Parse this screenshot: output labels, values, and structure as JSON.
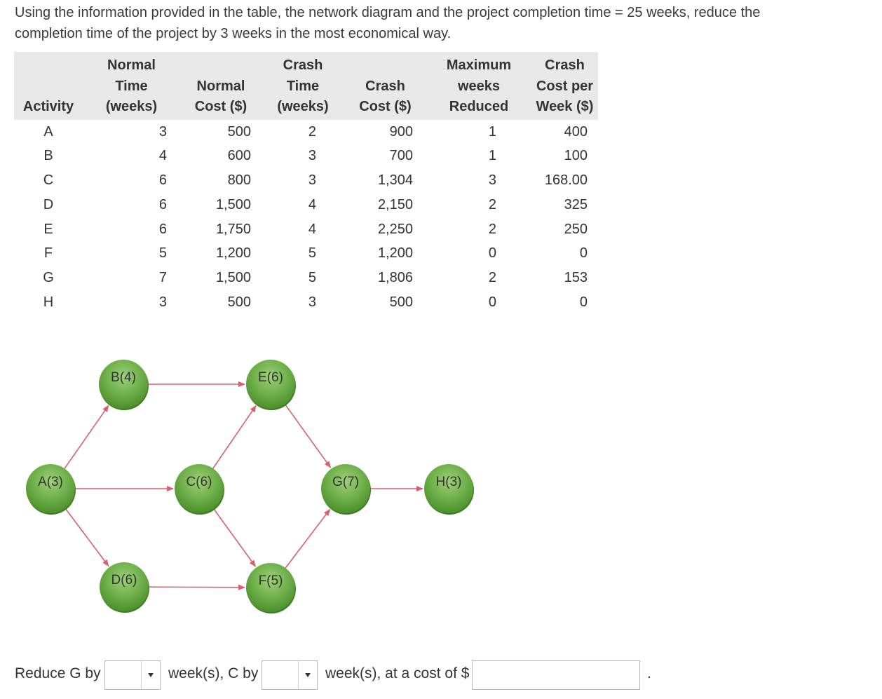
{
  "question": {
    "line1": "Using the information provided in the table, the network diagram and the project completion time = 25 weeks, reduce the",
    "line2": "completion time of the project by 3 weeks in the most economical way."
  },
  "table": {
    "headers": [
      [
        "",
        "",
        "Activity"
      ],
      [
        "Normal",
        "Time",
        "(weeks)"
      ],
      [
        "",
        "Normal",
        "Cost ($)"
      ],
      [
        "Crash",
        "Time",
        "(weeks)"
      ],
      [
        "",
        "Crash",
        "Cost ($)"
      ],
      [
        "Maximum",
        "weeks",
        "Reduced"
      ],
      [
        "Crash",
        "Cost per",
        "Week ($)"
      ]
    ],
    "rows": [
      [
        "A",
        "3",
        "500",
        "2",
        "900",
        "1",
        "400"
      ],
      [
        "B",
        "4",
        "600",
        "3",
        "700",
        "1",
        "100"
      ],
      [
        "C",
        "6",
        "800",
        "3",
        "1,304",
        "3",
        "168.00"
      ],
      [
        "D",
        "6",
        "1,500",
        "4",
        "2,150",
        "2",
        "325"
      ],
      [
        "E",
        "6",
        "1,750",
        "4",
        "2,250",
        "2",
        "250"
      ],
      [
        "F",
        "5",
        "1,200",
        "5",
        "1,200",
        "0",
        "0"
      ],
      [
        "G",
        "7",
        "1,500",
        "5",
        "1,806",
        "2",
        "153"
      ],
      [
        "H",
        "3",
        "500",
        "3",
        "500",
        "0",
        "0"
      ]
    ]
  },
  "network": {
    "nodes": {
      "A": "A(3)",
      "B": "B(4)",
      "C": "C(6)",
      "D": "D(6)",
      "E": "E(6)",
      "F": "F(5)",
      "G": "G(7)",
      "H": "H(3)"
    },
    "node_color": "#5ea23a",
    "edge_color": "#d9606a"
  },
  "answer": {
    "reduce_g_label": "Reduce G by",
    "reduce_g_value": "",
    "weeks_c_label": "week(s), C by",
    "reduce_c_value": "",
    "cost_label": "week(s), at a cost of $",
    "cost_value": "",
    "end_period": "."
  }
}
